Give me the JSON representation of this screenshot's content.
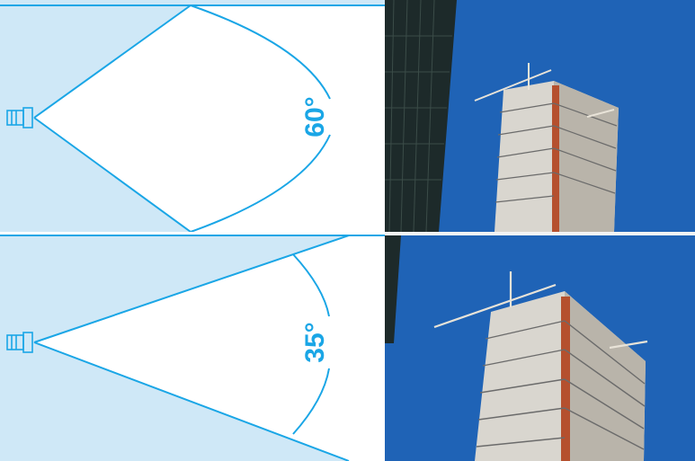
{
  "panels": [
    {
      "angle_label": "60°",
      "angle_degrees": 60
    },
    {
      "angle_label": "35°",
      "angle_degrees": 35
    }
  ],
  "colors": {
    "accent": "#1aa6e6",
    "fill": "#cfe8f7",
    "cone": "#ffffff",
    "sky": "#1f63b6"
  },
  "icons": [
    "camera-icon"
  ]
}
